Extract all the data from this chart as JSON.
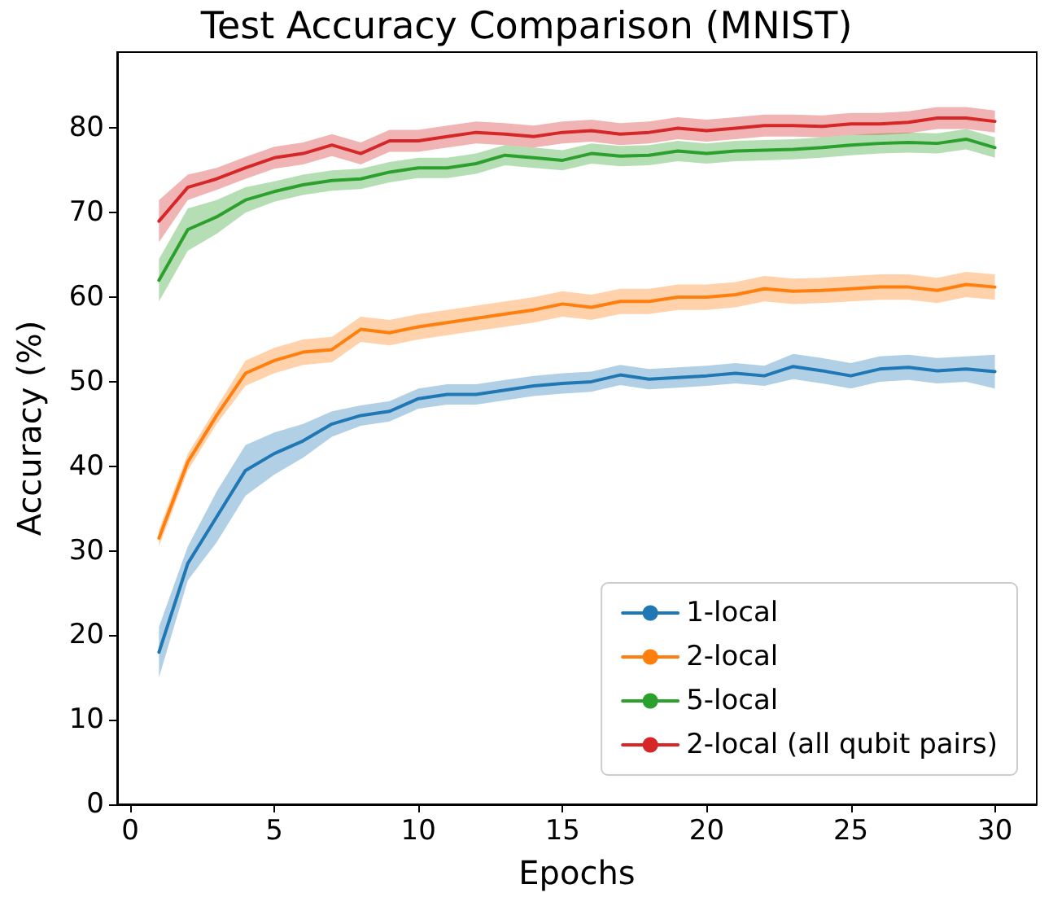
{
  "chart_data": {
    "type": "line",
    "title": "Test Accuracy Comparison (MNIST)",
    "xlabel": "Epochs",
    "ylabel": "Accuracy (%)",
    "x": [
      1,
      2,
      3,
      4,
      5,
      6,
      7,
      8,
      9,
      10,
      11,
      12,
      13,
      14,
      15,
      16,
      17,
      18,
      19,
      20,
      21,
      22,
      23,
      24,
      25,
      26,
      27,
      28,
      29,
      30
    ],
    "xlim": [
      -0.45,
      31.45
    ],
    "xticks": [
      0,
      5,
      10,
      15,
      20,
      25,
      30
    ],
    "ylim": [
      0,
      89
    ],
    "yticks": [
      0,
      10,
      20,
      30,
      40,
      50,
      60,
      70,
      80
    ],
    "grid": false,
    "legend": "bottom right",
    "marker": "none",
    "line_style": "solid",
    "series": [
      {
        "name": "1-local",
        "color": "#1f77b4",
        "values": [
          18,
          28.5,
          34,
          39.5,
          41.5,
          43,
          45,
          46,
          46.5,
          48,
          48.5,
          48.5,
          49,
          49.5,
          49.8,
          50,
          50.8,
          50.3,
          50.5,
          50.7,
          51,
          50.7,
          51.8,
          51.3,
          50.7,
          51.5,
          51.7,
          51.3,
          51.5,
          51.2
        ],
        "lower": [
          15,
          26.5,
          31,
          36.5,
          39,
          41,
          43.5,
          44.8,
          45.3,
          46.8,
          47.3,
          47.3,
          47.8,
          48.3,
          48.6,
          48.8,
          49.6,
          49.1,
          49.3,
          49.5,
          49.8,
          49.5,
          50.3,
          49.8,
          49.2,
          50,
          50.2,
          49.8,
          50,
          49.2
        ],
        "upper": [
          21,
          30.5,
          37,
          42.5,
          44,
          45,
          46.5,
          47.2,
          47.7,
          49.2,
          49.7,
          49.7,
          50.2,
          50.7,
          51,
          51.2,
          52,
          51.5,
          51.7,
          51.9,
          52.2,
          51.9,
          53.3,
          52.8,
          52.2,
          53,
          53.2,
          52.8,
          53,
          53.2
        ]
      },
      {
        "name": "2-local",
        "color": "#ff7f0e",
        "values": [
          31.5,
          40.5,
          46,
          51,
          52.5,
          53.5,
          53.8,
          56.2,
          55.8,
          56.5,
          57,
          57.5,
          58,
          58.5,
          59.2,
          58.8,
          59.5,
          59.5,
          60,
          60,
          60.3,
          61,
          60.7,
          60.8,
          61,
          61.2,
          61.2,
          60.8,
          61.5,
          61.2
        ],
        "lower": [
          30.5,
          39.5,
          45,
          49.5,
          51,
          52,
          52.3,
          54.7,
          54.3,
          55,
          55.5,
          56,
          56.5,
          57,
          57.7,
          57.3,
          58,
          58,
          58.5,
          58.5,
          58.8,
          59.5,
          59.2,
          59.3,
          59.5,
          59.7,
          59.7,
          59.3,
          60,
          59.7
        ],
        "upper": [
          32.5,
          41.5,
          47,
          52.5,
          54,
          55,
          55.3,
          57.7,
          57.3,
          58,
          58.5,
          59,
          59.5,
          60,
          60.7,
          60.3,
          61,
          61,
          61.5,
          61.5,
          61.8,
          62.5,
          62.2,
          62.3,
          62.5,
          62.7,
          62.7,
          62.3,
          63,
          62.7
        ]
      },
      {
        "name": "5-local",
        "color": "#2ca02c",
        "values": [
          62,
          68,
          69.5,
          71.5,
          72.5,
          73.3,
          73.8,
          74,
          74.8,
          75.3,
          75.3,
          75.8,
          76.8,
          76.5,
          76.2,
          77,
          76.7,
          76.8,
          77.3,
          77,
          77.3,
          77.4,
          77.5,
          77.7,
          78,
          78.2,
          78.3,
          78.2,
          78.7,
          77.7
        ],
        "lower": [
          59.5,
          65.5,
          67.5,
          70,
          71.3,
          72.1,
          72.6,
          72.8,
          73.6,
          74.1,
          74.1,
          74.6,
          75.6,
          75.3,
          75,
          75.8,
          75.5,
          75.6,
          76.1,
          75.8,
          76.1,
          76.2,
          76.3,
          76.5,
          76.8,
          77,
          77.1,
          77,
          77.5,
          76.5
        ],
        "upper": [
          64.5,
          70.5,
          71.5,
          73,
          73.7,
          74.5,
          75,
          75.2,
          76,
          76.5,
          76.5,
          77,
          78,
          77.7,
          77.4,
          78.2,
          77.9,
          78,
          78.5,
          78.2,
          78.5,
          78.6,
          78.7,
          78.9,
          79.2,
          79.4,
          79.5,
          79.4,
          79.9,
          78.9
        ]
      },
      {
        "name": "2-local (all qubit pairs)",
        "color": "#d62728",
        "values": [
          69,
          73,
          74,
          75.3,
          76.5,
          77,
          78,
          77,
          78.5,
          78.5,
          79,
          79.5,
          79.3,
          79,
          79.5,
          79.7,
          79.3,
          79.5,
          80,
          79.7,
          80,
          80.3,
          80.3,
          80.2,
          80.5,
          80.5,
          80.7,
          81.2,
          81.2,
          80.8
        ],
        "lower": [
          66.5,
          71.5,
          72.7,
          74,
          75.2,
          75.7,
          76.7,
          75.7,
          77.2,
          77.2,
          77.7,
          78.2,
          78,
          77.7,
          78.2,
          78.4,
          78,
          78.2,
          78.7,
          78.4,
          78.7,
          79,
          79,
          78.9,
          79.2,
          79.2,
          79.4,
          79.9,
          79.9,
          79.5
        ],
        "upper": [
          71.5,
          74.5,
          75.3,
          76.6,
          77.8,
          78.3,
          79.3,
          78.3,
          79.8,
          79.8,
          80.3,
          80.8,
          80.6,
          80.3,
          80.8,
          81,
          80.6,
          80.8,
          81.3,
          81,
          81.3,
          81.6,
          81.6,
          81.5,
          81.8,
          81.8,
          82,
          82.5,
          82.5,
          82.1
        ]
      }
    ]
  }
}
